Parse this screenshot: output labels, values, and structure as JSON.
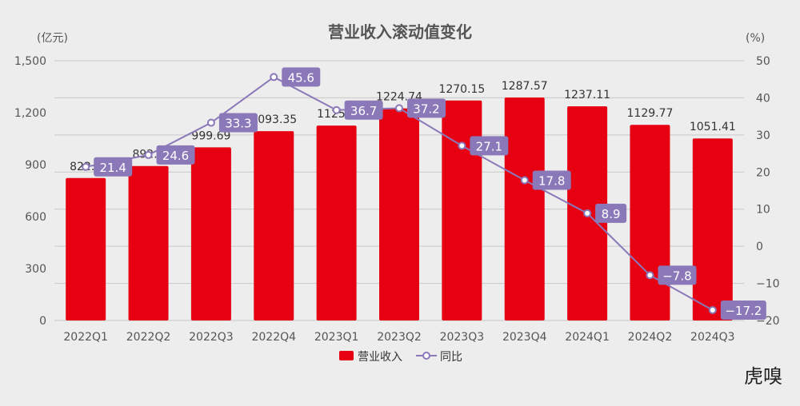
{
  "chart_data": {
    "type": "bar+line",
    "title": "营业收入滚动值变化",
    "y_left_unit": "(亿元)",
    "y_right_unit": "(%)",
    "categories": [
      "2022Q1",
      "2022Q2",
      "2022Q3",
      "2022Q4",
      "2023Q1",
      "2023Q2",
      "2023Q3",
      "2023Q4",
      "2024Q1",
      "2024Q2",
      "2024Q3"
    ],
    "series": [
      {
        "name": "营业收入",
        "type": "bar",
        "axis": "left",
        "color": "#e60012",
        "values": [
          822.6,
          892.2,
          999.69,
          1093.35,
          1125.8,
          1224.74,
          1270.15,
          1287.57,
          1237.11,
          1129.77,
          1051.41
        ],
        "labels": [
          "822.6",
          "892.2",
          "999.69",
          "1093.35",
          "1125.8",
          "1224.74",
          "1270.15",
          "1287.57",
          "1237.11",
          "1129.77",
          "1051.41"
        ]
      },
      {
        "name": "同比",
        "type": "line",
        "axis": "right",
        "color": "#8a78b8",
        "values": [
          21.4,
          24.6,
          33.3,
          45.6,
          36.7,
          37.2,
          27.1,
          17.8,
          8.9,
          -7.8,
          -17.2
        ],
        "labels": [
          "21.4",
          "24.6",
          "33.3",
          "45.6",
          "36.7",
          "37.2",
          "27.1",
          "17.8",
          "8.9",
          "−7.8",
          "−17.2"
        ]
      }
    ],
    "ylim_left": [
      0,
      1500
    ],
    "yticks_left": [
      "0",
      "300",
      "600",
      "900",
      "1,200",
      "1,500"
    ],
    "ylim_right": [
      -20,
      50
    ],
    "yticks_right": [
      "−20",
      "−10",
      "0",
      "10",
      "20",
      "30",
      "40",
      "50"
    ],
    "grid": true,
    "legend_position": "bottom"
  },
  "watermark": "虎嗅"
}
